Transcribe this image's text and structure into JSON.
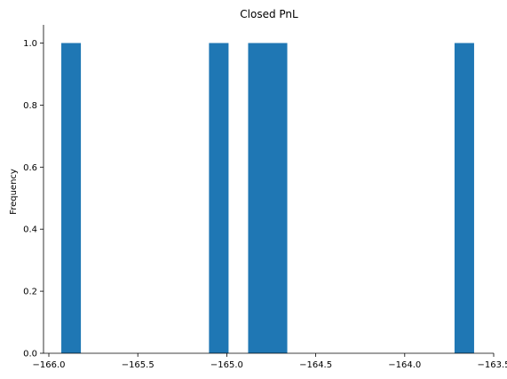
{
  "chart_data": {
    "type": "bar",
    "title": "Closed PnL",
    "xlabel": "",
    "ylabel": "Frequency",
    "xlim": [
      -166.03,
      -163.5
    ],
    "ylim": [
      0,
      1.05
    ],
    "x_ticks": [
      -166.0,
      -165.5,
      -165.0,
      -164.5,
      -164.0,
      -163.5
    ],
    "x_tick_labels": [
      "−166.0",
      "−165.5",
      "−165.0",
      "−164.5",
      "−164.0",
      "−163.5"
    ],
    "y_ticks": [
      0.0,
      0.2,
      0.4,
      0.6,
      0.8,
      1.0
    ],
    "y_tick_labels": [
      "0.0",
      "0.2",
      "0.4",
      "0.6",
      "0.8",
      "1.0"
    ],
    "grid": false,
    "bar_color": "#1f77b4",
    "bins": [
      {
        "x0": -165.93,
        "x1": -165.82,
        "count": 1
      },
      {
        "x0": -165.1,
        "x1": -164.99,
        "count": 1
      },
      {
        "x0": -164.88,
        "x1": -164.66,
        "count": 1
      },
      {
        "x0": -163.72,
        "x1": -163.61,
        "count": 1
      }
    ]
  }
}
